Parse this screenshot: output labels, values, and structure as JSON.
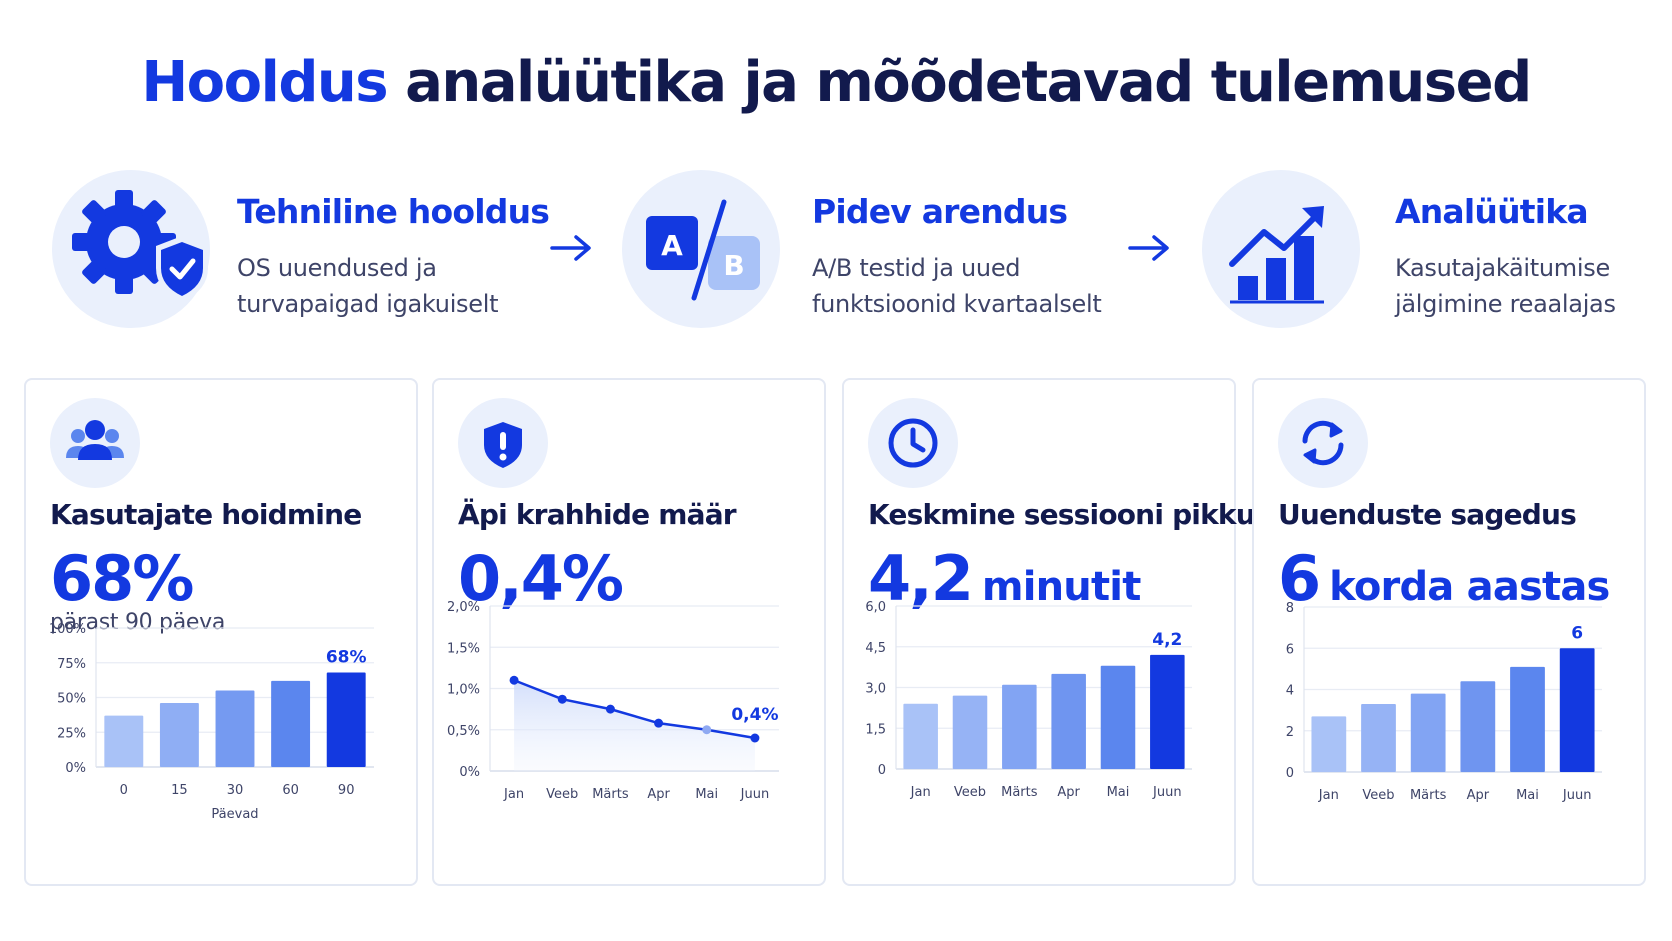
{
  "header": {
    "title_accent": "Hooldus",
    "title_rest": "analüütika ja mõõdetavad tulemused"
  },
  "steps": [
    {
      "title": "Tehniline hooldus",
      "desc_line1": "OS uuendused ja",
      "desc_line2": "turvapaigad igakuiselt",
      "icon": "gear-shield-icon"
    },
    {
      "title": "Pidev arendus",
      "desc_line1": "A/B testid ja uued",
      "desc_line2": "funktsioonid kvartaalselt",
      "icon": "ab-test-icon",
      "icon_a": "A",
      "icon_b": "B"
    },
    {
      "title": "Analüütika",
      "desc_line1": "Kasutajakäitumise",
      "desc_line2": "jälgimine reaalajas",
      "icon": "growth-chart-icon"
    }
  ],
  "colors": {
    "accent": "#1339e0",
    "dark": "#121a4d",
    "light_blue": "#a9c2f7",
    "circle_bg": "#eaf0fc"
  },
  "cards": [
    {
      "title": "Kasutajate hoidmine",
      "metric": "68%",
      "unit": "",
      "subtitle": "pärast 90 päeva",
      "icon": "users-icon"
    },
    {
      "title": "Äpi krahhide määr",
      "metric": "0,4%",
      "unit": "",
      "subtitle": "",
      "icon": "shield-alert-icon"
    },
    {
      "title": "Keskmine sessiooni pikkus",
      "metric": "4,2",
      "unit": "minutit",
      "subtitle": "",
      "icon": "clock-icon"
    },
    {
      "title": "Uuenduste sagedus",
      "metric": "6",
      "unit": "korda aastas",
      "subtitle": "",
      "icon": "refresh-icon"
    }
  ],
  "chart_data": [
    {
      "type": "bar",
      "categories": [
        "0",
        "15",
        "30",
        "60",
        "90"
      ],
      "values": [
        37,
        46,
        55,
        62,
        68
      ],
      "yticks": [
        "0%",
        "25%",
        "50%",
        "75%",
        "100%"
      ],
      "ylim": [
        0,
        100
      ],
      "xlabel": "Päevad",
      "ylabel": "",
      "highlight_label": "68%",
      "grid": true
    },
    {
      "type": "line",
      "categories": [
        "Jan",
        "Veeb",
        "Märts",
        "Apr",
        "Mai",
        "Juun"
      ],
      "values": [
        1.1,
        0.87,
        0.75,
        0.58,
        0.5,
        0.4
      ],
      "yticks": [
        "0%",
        "0,5%",
        "1,0%",
        "1,5%",
        "2,0%"
      ],
      "ylim": [
        0,
        2.0
      ],
      "xlabel": "",
      "ylabel": "",
      "highlight_label": "0,4%",
      "grid": true
    },
    {
      "type": "bar",
      "categories": [
        "Jan",
        "Veeb",
        "Märts",
        "Apr",
        "Mai",
        "Juun"
      ],
      "values": [
        2.4,
        2.7,
        3.1,
        3.5,
        3.8,
        4.2
      ],
      "yticks": [
        "0",
        "1,5",
        "3,0",
        "4,5",
        "6,0"
      ],
      "ylim": [
        0,
        6
      ],
      "xlabel": "",
      "ylabel": "",
      "highlight_label": "4,2",
      "grid": true
    },
    {
      "type": "bar",
      "categories": [
        "Jan",
        "Veeb",
        "Märts",
        "Apr",
        "Mai",
        "Juun"
      ],
      "values": [
        2.7,
        3.3,
        3.8,
        4.4,
        5.1,
        6
      ],
      "yticks": [
        "0",
        "2",
        "4",
        "6",
        "8"
      ],
      "ylim": [
        0,
        8
      ],
      "xlabel": "",
      "ylabel": "",
      "highlight_label": "6",
      "grid": true
    }
  ]
}
